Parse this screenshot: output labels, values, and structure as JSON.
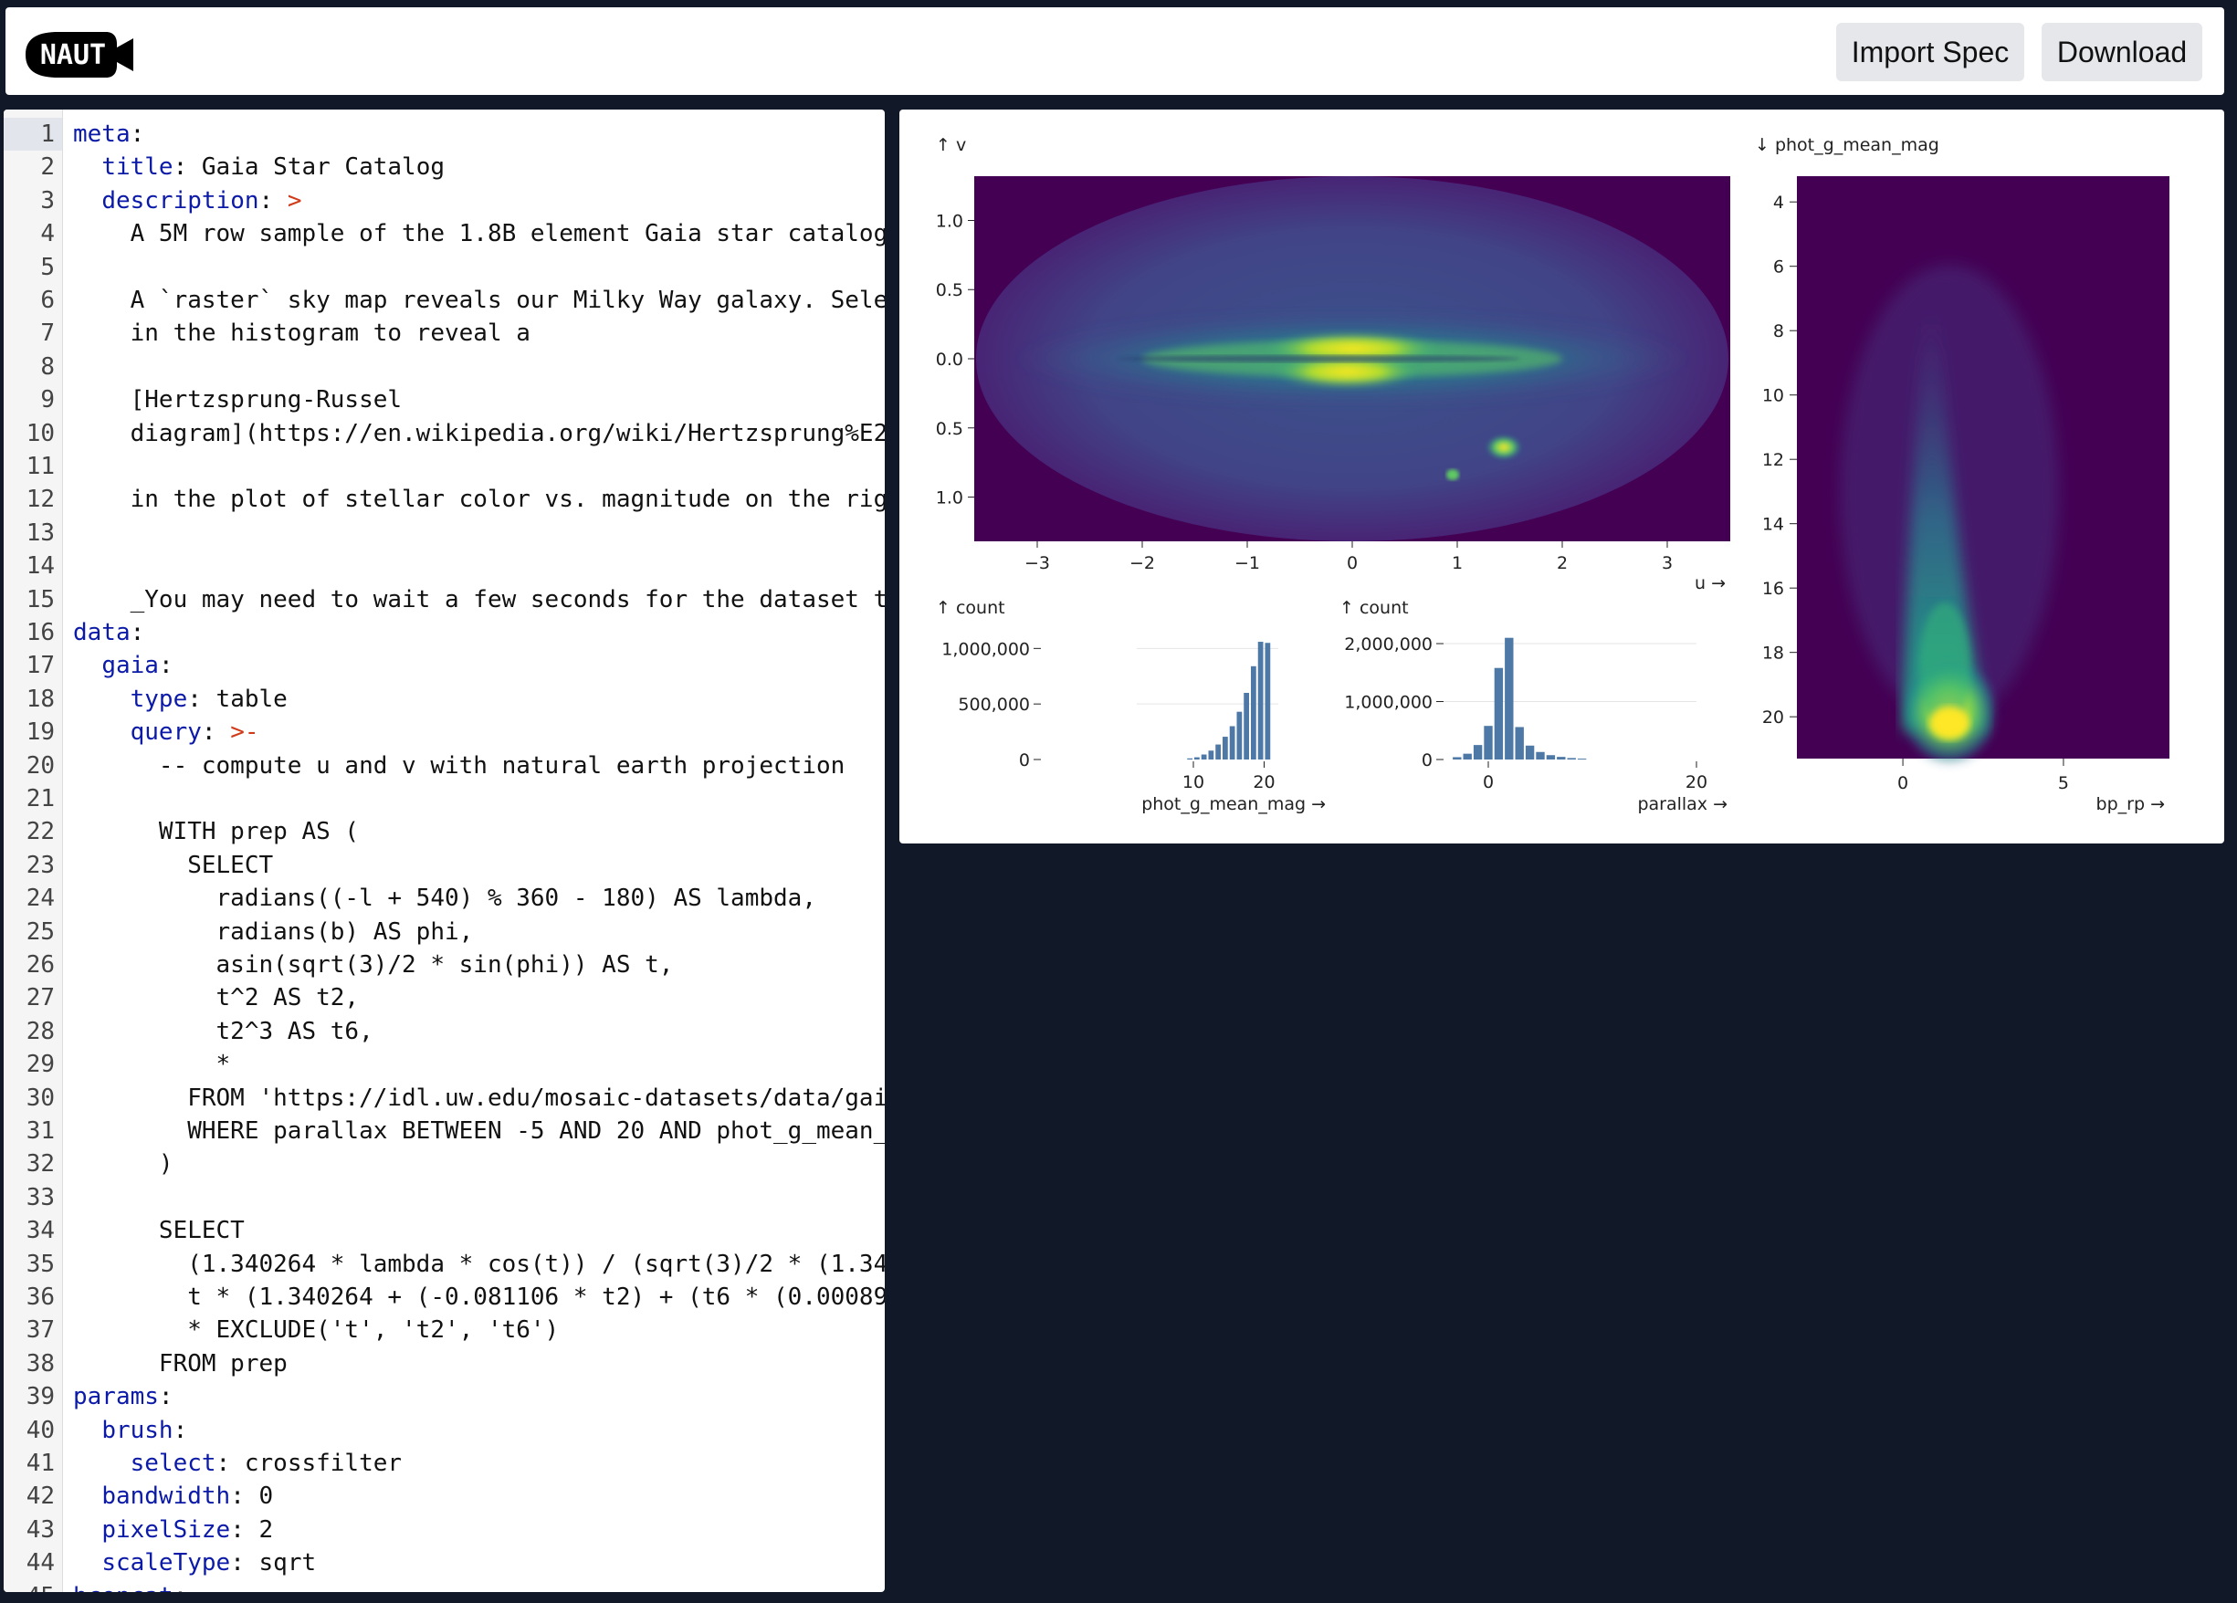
{
  "header": {
    "logo_text": "NAUT",
    "import_label": "Import Spec",
    "download_label": "Download"
  },
  "editor": {
    "lines": [
      [
        {
          "t": "meta",
          "c": "k"
        },
        {
          "t": ":"
        }
      ],
      [
        {
          "t": "  "
        },
        {
          "t": "title",
          "c": "k"
        },
        {
          "t": ": Gaia Star Catalog"
        }
      ],
      [
        {
          "t": "  "
        },
        {
          "t": "description",
          "c": "k"
        },
        {
          "t": ": "
        },
        {
          "t": ">",
          "c": "o"
        }
      ],
      [
        {
          "t": "    A 5M row sample of the 1.8B element Gaia star catalog"
        }
      ],
      [
        {
          "t": ""
        }
      ],
      [
        {
          "t": "    A `raster` sky map reveals our Milky Way galaxy. Sele"
        }
      ],
      [
        {
          "t": "    in the histogram to reveal a"
        }
      ],
      [
        {
          "t": ""
        }
      ],
      [
        {
          "t": "    [Hertzsprung-Russel"
        }
      ],
      [
        {
          "t": "    diagram](https://en.wikipedia.org/wiki/Hertzsprung%E2"
        }
      ],
      [
        {
          "t": ""
        }
      ],
      [
        {
          "t": "    in the plot of stellar color vs. magnitude on the rig"
        }
      ],
      [
        {
          "t": ""
        }
      ],
      [
        {
          "t": ""
        }
      ],
      [
        {
          "t": "    _You may need to wait a few seconds for the dataset t"
        }
      ],
      [
        {
          "t": "data",
          "c": "k"
        },
        {
          "t": ":"
        }
      ],
      [
        {
          "t": "  "
        },
        {
          "t": "gaia",
          "c": "k"
        },
        {
          "t": ":"
        }
      ],
      [
        {
          "t": "    "
        },
        {
          "t": "type",
          "c": "k"
        },
        {
          "t": ": table"
        }
      ],
      [
        {
          "t": "    "
        },
        {
          "t": "query",
          "c": "k"
        },
        {
          "t": ": "
        },
        {
          "t": ">-",
          "c": "o"
        }
      ],
      [
        {
          "t": "      -- compute u and v with natural earth projection"
        }
      ],
      [
        {
          "t": ""
        }
      ],
      [
        {
          "t": "      WITH prep AS ("
        }
      ],
      [
        {
          "t": "        SELECT"
        }
      ],
      [
        {
          "t": "          radians((-l + 540) % 360 - 180) AS lambda,"
        }
      ],
      [
        {
          "t": "          radians(b) AS phi,"
        }
      ],
      [
        {
          "t": "          asin(sqrt(3)/2 * sin(phi)) AS t,"
        }
      ],
      [
        {
          "t": "          t^2 AS t2,"
        }
      ],
      [
        {
          "t": "          t2^3 AS t6,"
        }
      ],
      [
        {
          "t": "          *"
        }
      ],
      [
        {
          "t": "        FROM 'https://idl.uw.edu/mosaic-datasets/data/gai"
        }
      ],
      [
        {
          "t": "        WHERE parallax BETWEEN -5 AND 20 AND phot_g_mean_"
        }
      ],
      [
        {
          "t": "      )"
        }
      ],
      [
        {
          "t": ""
        }
      ],
      [
        {
          "t": "      SELECT"
        }
      ],
      [
        {
          "t": "        (1.340264 * lambda * cos(t)) / (sqrt(3)/2 * (1.34"
        }
      ],
      [
        {
          "t": "        t * (1.340264 + (-0.081106 * t2) + (t6 * (0.00089"
        }
      ],
      [
        {
          "t": "        * EXCLUDE('t', 't2', 't6')"
        }
      ],
      [
        {
          "t": "      FROM prep"
        }
      ],
      [
        {
          "t": "params",
          "c": "k"
        },
        {
          "t": ":"
        }
      ],
      [
        {
          "t": "  "
        },
        {
          "t": "brush",
          "c": "k"
        },
        {
          "t": ":"
        }
      ],
      [
        {
          "t": "    "
        },
        {
          "t": "select",
          "c": "k"
        },
        {
          "t": ": crossfilter"
        }
      ],
      [
        {
          "t": "  "
        },
        {
          "t": "bandwidth",
          "c": "k"
        },
        {
          "t": ": 0"
        }
      ],
      [
        {
          "t": "  "
        },
        {
          "t": "pixelSize",
          "c": "k"
        },
        {
          "t": ": 2"
        }
      ],
      [
        {
          "t": "  "
        },
        {
          "t": "scaleType",
          "c": "k"
        },
        {
          "t": ": sqrt"
        }
      ],
      [
        {
          "t": "hconcat",
          "c": "k"
        },
        {
          "t": ":"
        }
      ]
    ]
  },
  "chart_data": [
    {
      "type": "heatmap",
      "ylabel": "↑ v",
      "xlabel": "u →",
      "x_ticks": [
        "−3",
        "−2",
        "−1",
        "0",
        "1",
        "2",
        "3"
      ],
      "x_tick_values": [
        -3,
        -2,
        -1,
        0,
        1,
        2,
        3
      ],
      "y_ticks": [
        "1.0",
        "0.5",
        "0.0",
        "0.5",
        "1.0"
      ],
      "y_tick_values": [
        1.0,
        0.5,
        0.0,
        -0.5,
        -1.0
      ],
      "xlim": [
        -3.6,
        3.6
      ],
      "ylim": [
        -1.32,
        1.32
      ],
      "colors": {
        "background": "#440154",
        "low": "#3b528b",
        "mid": "#21918c",
        "high": "#fde725"
      }
    },
    {
      "type": "bar",
      "ylabel": "↑ count",
      "xlabel": "phot_g_mean_mag →",
      "x_ticks": [
        "10",
        "20"
      ],
      "x_tick_values": [
        10,
        20
      ],
      "y_ticks": [
        "1,000,000",
        "500,000",
        "0"
      ],
      "y_tick_values": [
        1000000,
        500000,
        0
      ],
      "xlim": [
        2,
        22
      ],
      "ylim": [
        0,
        1200000
      ],
      "bins": [
        9.5,
        10.5,
        11.5,
        12.5,
        13.5,
        14.5,
        15.5,
        16.5,
        17.5,
        18.5,
        19.5,
        20.5
      ],
      "values": [
        10000,
        20000,
        45000,
        80000,
        135000,
        205000,
        300000,
        430000,
        600000,
        840000,
        1060000,
        1050000
      ],
      "color": "#4e79a7"
    },
    {
      "type": "bar",
      "ylabel": "↑ count",
      "xlabel": "parallax →",
      "x_ticks": [
        "0",
        "20"
      ],
      "x_tick_values": [
        0,
        20
      ],
      "y_ticks": [
        "2,000,000",
        "1,000,000",
        "0"
      ],
      "y_tick_values": [
        2000000,
        1000000,
        0
      ],
      "xlim": [
        -5,
        20
      ],
      "ylim": [
        0,
        2300000
      ],
      "bins": [
        -3,
        -2,
        -1,
        0,
        1,
        2,
        3,
        4,
        5,
        6,
        7,
        8,
        9
      ],
      "values": [
        40000,
        100000,
        250000,
        580000,
        1580000,
        2100000,
        560000,
        240000,
        130000,
        75000,
        45000,
        25000,
        15000
      ],
      "color": "#4e79a7"
    },
    {
      "type": "heatmap",
      "ylabel": "↓ phot_g_mean_mag",
      "xlabel": "bp_rp →",
      "x_ticks": [
        "0",
        "5"
      ],
      "x_tick_values": [
        0,
        5
      ],
      "y_ticks": [
        "4",
        "6",
        "8",
        "10",
        "12",
        "14",
        "16",
        "18",
        "20"
      ],
      "y_tick_values": [
        4,
        6,
        8,
        10,
        12,
        14,
        16,
        18,
        20
      ],
      "xlim": [
        -3.3,
        8.3
      ],
      "ylim": [
        3.2,
        21.3
      ],
      "colors": {
        "background": "#440154",
        "low": "#3b528b",
        "mid": "#21918c",
        "high": "#fde725"
      }
    }
  ]
}
